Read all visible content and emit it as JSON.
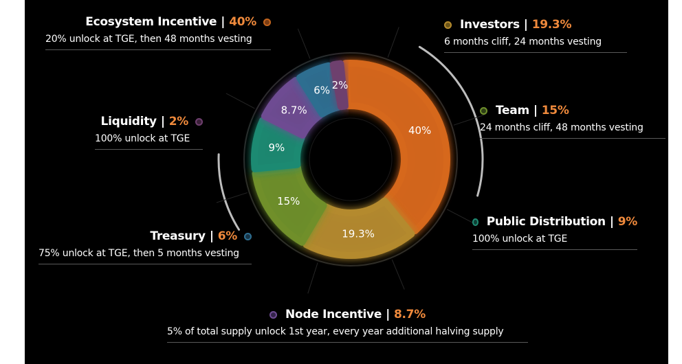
{
  "chart_data": {
    "type": "pie",
    "style": "donut",
    "slices": [
      {
        "name": "Ecosystem Incentive",
        "value": 40,
        "label": "40%",
        "color": "#d6671f",
        "desc": "20% unlock at TGE, then 48 months vesting"
      },
      {
        "name": "Investors",
        "value": 19.3,
        "label": "19.3%",
        "color": "#b48a2e",
        "desc": "6 months cliff, 24 months vesting"
      },
      {
        "name": "Team",
        "value": 15,
        "label": "15%",
        "color": "#6f8f2c",
        "desc": "24 months cliff, 48 months vesting"
      },
      {
        "name": "Public Distribution",
        "value": 9,
        "label": "9%",
        "color": "#1f8a72",
        "desc": "100% unlock at  TGE"
      },
      {
        "name": "Node Incentive",
        "value": 8.7,
        "label": "8.7%",
        "color": "#6e4c92",
        "desc": "5% of total supply unlock 1st year, every year additional halving supply"
      },
      {
        "name": "Treasury",
        "value": 6,
        "label": "6%",
        "color": "#2f6e90",
        "desc": "75% unlock at TGE, then 5 months vesting"
      },
      {
        "name": "Liquidity",
        "value": 2,
        "label": "2%",
        "color": "#6e3f6e",
        "desc": "100% unlock at TGE"
      }
    ]
  }
}
